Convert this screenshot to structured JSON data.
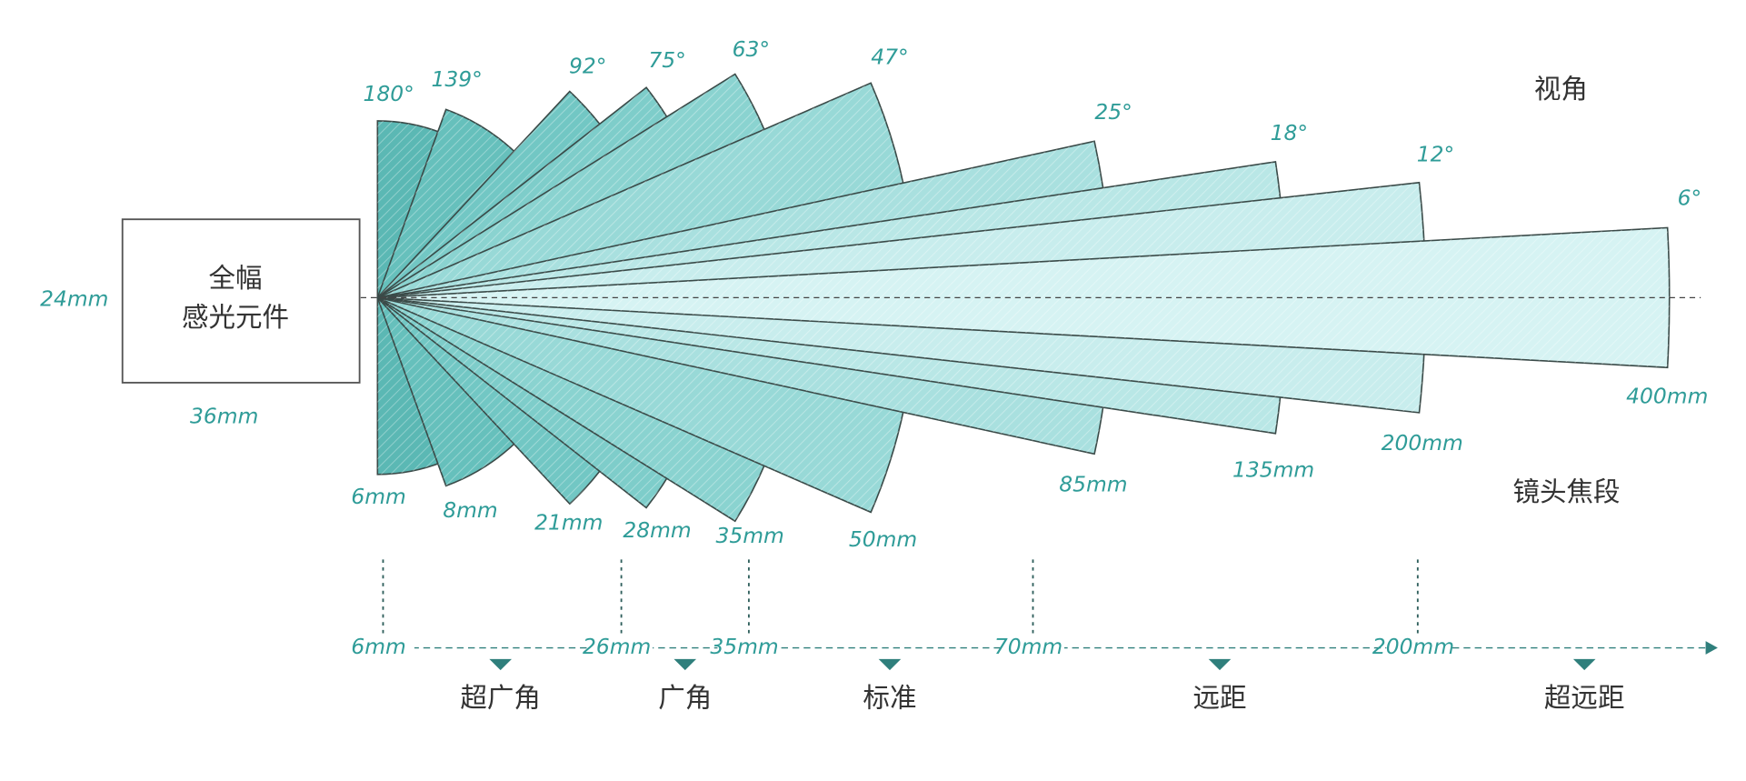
{
  "sensor": {
    "label_line1": "全幅",
    "label_line2": "感光元件",
    "height": "24mm",
    "width": "36mm"
  },
  "headings": {
    "view_angle": "视角",
    "focal_length": "镜头焦段"
  },
  "lenses": [
    {
      "angle": "180°",
      "focal": "6mm"
    },
    {
      "angle": "139°",
      "focal": "8mm"
    },
    {
      "angle": "92°",
      "focal": "21mm"
    },
    {
      "angle": "75°",
      "focal": "28mm"
    },
    {
      "angle": "63°",
      "focal": "35mm"
    },
    {
      "angle": "47°",
      "focal": "50mm"
    },
    {
      "angle": "25°",
      "focal": "85mm"
    },
    {
      "angle": "18°",
      "focal": "135mm"
    },
    {
      "angle": "12°",
      "focal": "200mm"
    },
    {
      "angle": "6°",
      "focal": "400mm"
    }
  ],
  "scale": {
    "ticks": [
      "6mm",
      "26mm",
      "35mm",
      "70mm",
      "200mm"
    ],
    "ranges": [
      "超广角",
      "广角",
      "标准",
      "远距",
      "超远距"
    ]
  }
}
